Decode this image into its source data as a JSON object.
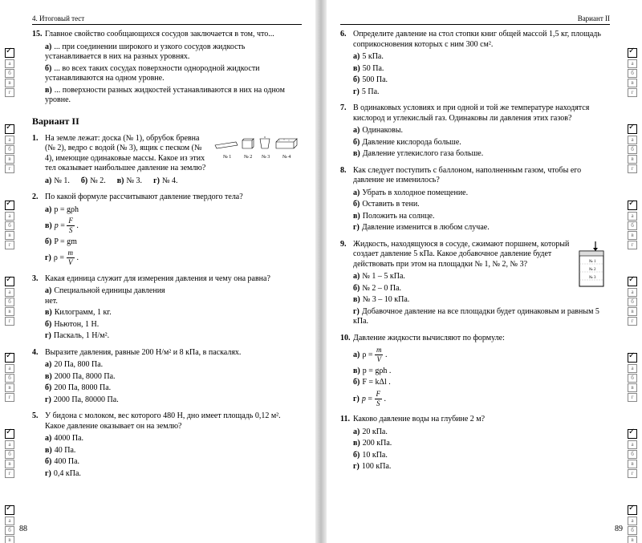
{
  "leftHeader": "4. Итоговый тест",
  "rightHeader": "Вариант II",
  "leftPageNum": "88",
  "rightPageNum": "89",
  "variantTitle": "Вариант II",
  "q15": {
    "num": "15.",
    "text": "Главное свойство сообщающихся сосудов заключается в том, что...",
    "a": "а)",
    "at": "... при соединении широкого и узкого сосудов жидкость устанавливается в них на разных уровнях.",
    "b": "б)",
    "bt": "... во всех таких сосудах поверхности однородной жидкости устанавливаются на одном уровне.",
    "c": "в)",
    "ct": "... поверхности разных жидкостей устанавливаются в них на одном уровне."
  },
  "q1": {
    "num": "1.",
    "text": "На земле лежат: доска (№ 1), обрубок бревна (№ 2), ведро с водой (№ 3), ящик с песком (№ 4), имеющие одинаковые массы. Какое из этих тел оказывает наибольшее давление на землю?",
    "a": "а)",
    "at": "№ 1.",
    "b": "б)",
    "bt": "№ 2.",
    "c": "в)",
    "ct": "№ 3.",
    "d": "г)",
    "dt": "№ 4.",
    "fig": {
      "l1": "№ 1",
      "l2": "№ 2",
      "l3": "№ 3",
      "l4": "№ 4"
    }
  },
  "q2": {
    "num": "2.",
    "text": "По какой формуле рассчитывают давление твердого тела?",
    "a": "а)",
    "at": "p = gρh",
    "b": "б)",
    "bt": "P = gm",
    "c": "в)",
    "d": "г)"
  },
  "q3": {
    "num": "3.",
    "text": "Какая единица служит для измерения давления и чему она равна?",
    "a": "а)",
    "at": "Специальной единицы давления нет.",
    "b": "б)",
    "bt": "Ньютон, 1 Н.",
    "c": "в)",
    "ct": "Килограмм, 1 кг.",
    "d": "г)",
    "dt": "Паскаль, 1 Н/м²."
  },
  "q4": {
    "num": "4.",
    "text": "Выразите давления, равные 200 Н/м² и 8 кПа, в паскалях.",
    "a": "а)",
    "at": "20 Па, 800 Па.",
    "b": "б)",
    "bt": "200 Па, 8000 Па.",
    "c": "в)",
    "ct": "2000 Па, 8000 Па.",
    "d": "г)",
    "dt": "2000 Па, 80000 Па."
  },
  "q5": {
    "num": "5.",
    "text": "У бидона с молоком, вес которого 480 Н, дно имеет площадь 0,12 м². Какое давление оказывает он на землю?",
    "a": "а)",
    "at": "4000 Па.",
    "b": "б)",
    "bt": "400 Па.",
    "c": "в)",
    "ct": "40 Па.",
    "d": "г)",
    "dt": "0,4 кПа."
  },
  "q6": {
    "num": "6.",
    "text": "Определите давление на стол стопки книг общей массой 1,5 кг, площадь соприкосновения которых с ним 300 см².",
    "a": "а)",
    "at": "5 кПа.",
    "b": "б)",
    "bt": "500 Па.",
    "c": "в)",
    "ct": "50 Па.",
    "d": "г)",
    "dt": "5 Па."
  },
  "q7": {
    "num": "7.",
    "text": "В одинаковых условиях и при одной и той же температуре находятся кислород и углекислый газ. Одинаковы ли давления этих газов?",
    "a": "а)",
    "at": "Одинаковы.",
    "b": "б)",
    "bt": "Давление кислорода больше.",
    "c": "в)",
    "ct": "Давление углекислого газа больше."
  },
  "q8": {
    "num": "8.",
    "text": "Как следует поступить с баллоном, наполненным газом, чтобы его давление не изменилось?",
    "a": "а)",
    "at": "Убрать в холодное помещение.",
    "b": "б)",
    "bt": "Оставить в тени.",
    "c": "в)",
    "ct": "Положить на солнце.",
    "d": "г)",
    "dt": "Давление изменится в любом случае."
  },
  "q9": {
    "num": "9.",
    "text": "Жидкость, находящуюся в сосуде, сжимают поршнем, который создает давление 5 кПа. Какое добавочное давление будет действовать при этом на площадки № 1, № 2, № 3?",
    "a": "а)",
    "at": "№ 1 – 5 кПа.",
    "b": "б)",
    "bt": "№ 2 – 0 Па.",
    "c": "в)",
    "ct": "№ 3 – 10 кПа.",
    "d": "г)",
    "dt": "Добавочное давление на все площадки будет одинаковым и равным 5 кПа.",
    "fig": {
      "l1": "№ 1",
      "l2": "№ 2",
      "l3": "№ 3"
    }
  },
  "q10": {
    "num": "10.",
    "text": "Давление жидкости вычисляют по формуле:",
    "a": "а)",
    "b": "б)",
    "bt": "F = kΔl .",
    "c": "в)",
    "ct": "p = gρh .",
    "d": "г)"
  },
  "q11": {
    "num": "11.",
    "text": "Каково давление воды на глубине 2 м?",
    "a": "а)",
    "at": "20 кПа.",
    "b": "б)",
    "bt": "10 кПа.",
    "c": "в)",
    "ct": "200 кПа.",
    "d": "г)",
    "dt": "100 кПа."
  },
  "boxLetters": [
    "а",
    "б",
    "в",
    "г"
  ]
}
